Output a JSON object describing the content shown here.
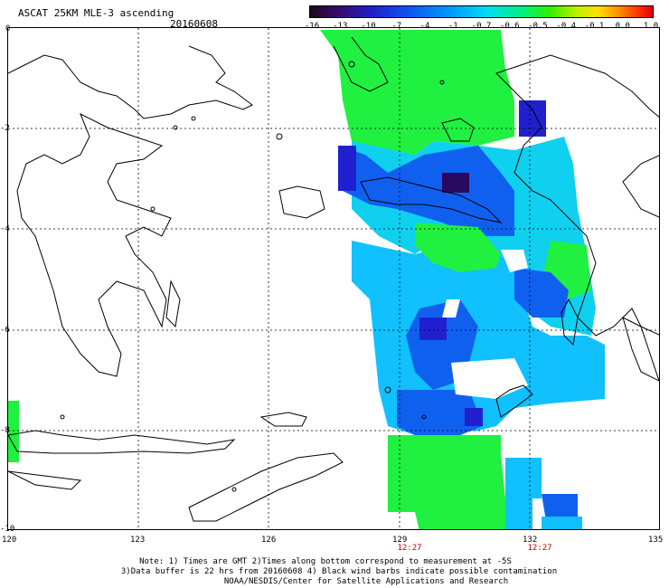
{
  "header": {
    "title": "ASCAT 25KM MLE-3 ascending",
    "date": "20160608"
  },
  "colorbar": {
    "labels": [
      "-16",
      "-13",
      "-10",
      "-7",
      "-4",
      "-1",
      "-0.7",
      "-0.6",
      "-0.5",
      "-0.4",
      "-0.1",
      "0.0",
      "1.0"
    ]
  },
  "axes": {
    "x_ticks": [
      "120",
      "123",
      "126",
      "129",
      "132",
      "135"
    ],
    "y_ticks": [
      "0",
      "-2",
      "-4",
      "-6",
      "-8",
      "-10"
    ]
  },
  "time_labels": [
    "12:27",
    "12:27"
  ],
  "footer": {
    "line1": "Note: 1) Times are GMT 2)Times along bottom correspond to measurement at -5S",
    "line2": "3)Data buffer is 22 hrs from 20160608 4) Black wind barbs indicate possible contamination",
    "line3": "NOAA/NESDIS/Center for Satellite Applications and Research"
  },
  "colors": {
    "green": "#20f040",
    "cyan": "#10d0f0",
    "lightblue": "#10c0ff",
    "blue": "#1060f0",
    "darkblue": "#2020d0",
    "violet": "#2a0a60"
  }
}
